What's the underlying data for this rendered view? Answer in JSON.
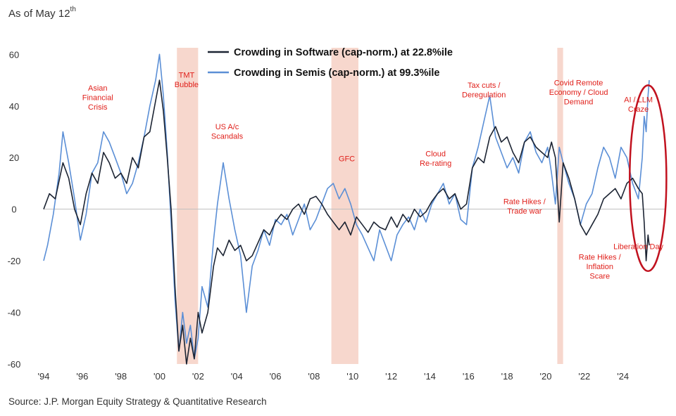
{
  "header": {
    "as_of": "As of May 12",
    "as_of_suffix": "th"
  },
  "footer": {
    "source": "Source: J.P. Morgan Equity Strategy & Quantitative Research"
  },
  "chart_data": {
    "type": "line",
    "title": "",
    "xlabel": "",
    "ylabel": "",
    "xlim": [
      1994.0,
      2026.2
    ],
    "ylim": [
      -60,
      62
    ],
    "yticks": [
      60,
      40,
      20,
      0,
      -20,
      -40,
      -60
    ],
    "xticks": [
      {
        "value": 1994,
        "label": "'94"
      },
      {
        "value": 1996,
        "label": "'96"
      },
      {
        "value": 1998,
        "label": "'98"
      },
      {
        "value": 2000,
        "label": "'00"
      },
      {
        "value": 2002,
        "label": "'02"
      },
      {
        "value": 2004,
        "label": "'04"
      },
      {
        "value": 2006,
        "label": "'06"
      },
      {
        "value": 2008,
        "label": "'08"
      },
      {
        "value": 2010,
        "label": "'10"
      },
      {
        "value": 2012,
        "label": "'12"
      },
      {
        "value": 2014,
        "label": "'14"
      },
      {
        "value": 2016,
        "label": "'16"
      },
      {
        "value": 2018,
        "label": "'18"
      },
      {
        "value": 2020,
        "label": "'20"
      },
      {
        "value": 2022,
        "label": "'22"
      },
      {
        "value": 2024,
        "label": "'24"
      }
    ],
    "legend_position": "top-center",
    "colors": {
      "software": "#1c2433",
      "semis": "#5b8fd6",
      "shade": "#f6d0c4",
      "annotation": "#e0201b",
      "highlight": "#c1121f"
    },
    "series": [
      {
        "name": "Crowding in Software (cap-norm.) at 22.8%ile",
        "key": "software",
        "x": [
          1994.0,
          1994.3,
          1994.6,
          1995.0,
          1995.3,
          1995.6,
          1995.9,
          1996.2,
          1996.5,
          1996.8,
          1997.1,
          1997.4,
          1997.7,
          1998.0,
          1998.3,
          1998.6,
          1998.9,
          1999.2,
          1999.5,
          1999.8,
          2000.0,
          2000.2,
          2000.4,
          2000.6,
          2000.8,
          2001.0,
          2001.2,
          2001.4,
          2001.6,
          2001.8,
          2002.0,
          2002.2,
          2002.5,
          2002.8,
          2003.0,
          2003.3,
          2003.6,
          2003.9,
          2004.2,
          2004.5,
          2004.8,
          2005.1,
          2005.4,
          2005.7,
          2006.0,
          2006.3,
          2006.6,
          2006.9,
          2007.2,
          2007.5,
          2007.8,
          2008.1,
          2008.4,
          2008.7,
          2009.0,
          2009.3,
          2009.6,
          2009.9,
          2010.2,
          2010.5,
          2010.8,
          2011.1,
          2011.4,
          2011.7,
          2012.0,
          2012.3,
          2012.6,
          2012.9,
          2013.2,
          2013.5,
          2013.8,
          2014.1,
          2014.4,
          2014.7,
          2015.0,
          2015.3,
          2015.6,
          2015.9,
          2016.2,
          2016.5,
          2016.8,
          2017.1,
          2017.4,
          2017.7,
          2018.0,
          2018.3,
          2018.6,
          2018.9,
          2019.2,
          2019.5,
          2019.8,
          2020.1,
          2020.3,
          2020.5,
          2020.7,
          2020.9,
          2021.2,
          2021.5,
          2021.8,
          2022.1,
          2022.4,
          2022.7,
          2023.0,
          2023.3,
          2023.6,
          2023.9,
          2024.2,
          2024.5,
          2024.8,
          2025.0,
          2025.1,
          2025.2,
          2025.3,
          2025.36
        ],
        "values": [
          0,
          6,
          4,
          18,
          12,
          0,
          -6,
          6,
          14,
          10,
          22,
          18,
          12,
          14,
          10,
          20,
          16,
          28,
          30,
          42,
          50,
          38,
          20,
          0,
          -30,
          -55,
          -45,
          -60,
          -50,
          -58,
          -40,
          -48,
          -40,
          -22,
          -15,
          -18,
          -12,
          -16,
          -14,
          -20,
          -18,
          -13,
          -8,
          -10,
          -5,
          -2,
          -4,
          0,
          2,
          -2,
          4,
          5,
          2,
          -2,
          -5,
          -8,
          -5,
          -10,
          -3,
          -6,
          -9,
          -5,
          -7,
          -8,
          -3,
          -7,
          -2,
          -5,
          0,
          -3,
          -1,
          3,
          6,
          8,
          4,
          6,
          0,
          2,
          16,
          20,
          18,
          28,
          32,
          26,
          28,
          22,
          18,
          26,
          28,
          24,
          22,
          20,
          26,
          20,
          -5,
          18,
          12,
          4,
          -6,
          -10,
          -6,
          -2,
          4,
          6,
          8,
          4,
          10,
          12,
          8,
          6,
          -5,
          -20,
          -10,
          -14
        ]
      },
      {
        "name": "Crowding in Semis (cap-norm.) at 99.3%ile",
        "key": "semis",
        "x": [
          1994.0,
          1994.2,
          1994.5,
          1994.8,
          1995.0,
          1995.3,
          1995.6,
          1995.9,
          1996.2,
          1996.5,
          1996.8,
          1997.1,
          1997.4,
          1997.7,
          1998.0,
          1998.3,
          1998.6,
          1998.9,
          1999.2,
          1999.5,
          1999.8,
          2000.0,
          2000.2,
          2000.4,
          2000.6,
          2000.8,
          2001.0,
          2001.2,
          2001.4,
          2001.6,
          2001.8,
          2002.0,
          2002.2,
          2002.5,
          2002.8,
          2003.0,
          2003.3,
          2003.6,
          2003.9,
          2004.2,
          2004.5,
          2004.8,
          2005.1,
          2005.4,
          2005.7,
          2006.0,
          2006.3,
          2006.6,
          2006.9,
          2007.2,
          2007.5,
          2007.8,
          2008.1,
          2008.4,
          2008.7,
          2009.0,
          2009.3,
          2009.6,
          2009.9,
          2010.2,
          2010.5,
          2010.8,
          2011.1,
          2011.4,
          2011.7,
          2012.0,
          2012.3,
          2012.6,
          2012.9,
          2013.2,
          2013.5,
          2013.8,
          2014.1,
          2014.4,
          2014.7,
          2015.0,
          2015.3,
          2015.6,
          2015.9,
          2016.2,
          2016.5,
          2016.8,
          2017.1,
          2017.4,
          2017.7,
          2018.0,
          2018.3,
          2018.6,
          2018.9,
          2019.2,
          2019.5,
          2019.8,
          2020.1,
          2020.3,
          2020.5,
          2020.7,
          2020.9,
          2021.2,
          2021.5,
          2021.8,
          2022.1,
          2022.4,
          2022.7,
          2023.0,
          2023.3,
          2023.6,
          2023.9,
          2024.2,
          2024.5,
          2024.8,
          2025.0,
          2025.1,
          2025.2,
          2025.3,
          2025.36
        ],
        "values": [
          -20,
          -14,
          -2,
          14,
          30,
          18,
          4,
          -12,
          -2,
          14,
          18,
          30,
          26,
          20,
          14,
          6,
          10,
          18,
          28,
          40,
          50,
          60,
          44,
          22,
          -5,
          -35,
          -55,
          -40,
          -52,
          -45,
          -58,
          -50,
          -30,
          -38,
          -12,
          2,
          18,
          4,
          -8,
          -18,
          -40,
          -22,
          -16,
          -8,
          -14,
          -4,
          -6,
          -2,
          -10,
          -4,
          2,
          -8,
          -4,
          2,
          8,
          10,
          4,
          8,
          2,
          -6,
          -10,
          -15,
          -20,
          -8,
          -14,
          -20,
          -10,
          -6,
          -3,
          -8,
          0,
          -5,
          2,
          6,
          10,
          2,
          6,
          -4,
          -6,
          16,
          24,
          34,
          44,
          28,
          22,
          16,
          20,
          14,
          26,
          30,
          22,
          18,
          24,
          14,
          2,
          24,
          18,
          10,
          4,
          -6,
          2,
          6,
          16,
          24,
          20,
          12,
          24,
          20,
          10,
          4,
          20,
          36,
          30,
          44,
          50
        ]
      }
    ],
    "shaded_periods": [
      [
        2000.9,
        2002.0
      ],
      [
        2008.9,
        2010.3
      ],
      [
        2020.6,
        2020.9
      ]
    ],
    "annotations": [
      {
        "x": 1996.8,
        "y": 46,
        "lines": [
          "Asian",
          "Financial",
          "Crisis"
        ]
      },
      {
        "x": 2001.4,
        "y": 51,
        "lines": [
          "TMT",
          "Bubble"
        ]
      },
      {
        "x": 2003.5,
        "y": 31,
        "lines": [
          "US A/c",
          "Scandals"
        ]
      },
      {
        "x": 2009.7,
        "y": 18.5,
        "lines": [
          "GFC"
        ]
      },
      {
        "x": 2014.3,
        "y": 20.5,
        "lines": [
          "Cloud",
          "Re-rating"
        ]
      },
      {
        "x": 2016.8,
        "y": 47,
        "lines": [
          "Tax cuts /",
          "Deregulation"
        ]
      },
      {
        "x": 2018.9,
        "y": 2,
        "lines": [
          "Rate Hikes /",
          "Trade war"
        ]
      },
      {
        "x": 2021.7,
        "y": 48,
        "lines": [
          "Covid Remote",
          "Economy / Cloud",
          "Demand"
        ]
      },
      {
        "x": 2024.8,
        "y": 41.5,
        "lines": [
          "AI / LLM",
          "Craze"
        ]
      },
      {
        "x": 2024.8,
        "y": -15.5,
        "lines": [
          "Liberation Day"
        ]
      },
      {
        "x": 2022.8,
        "y": -19.5,
        "lines": [
          "Rate Hikes /",
          "Inflation",
          "Scare"
        ]
      }
    ],
    "highlight_ellipse": {
      "x": 2025.3,
      "y": 12,
      "rx_years": 0.95,
      "ry_units": 36
    }
  }
}
